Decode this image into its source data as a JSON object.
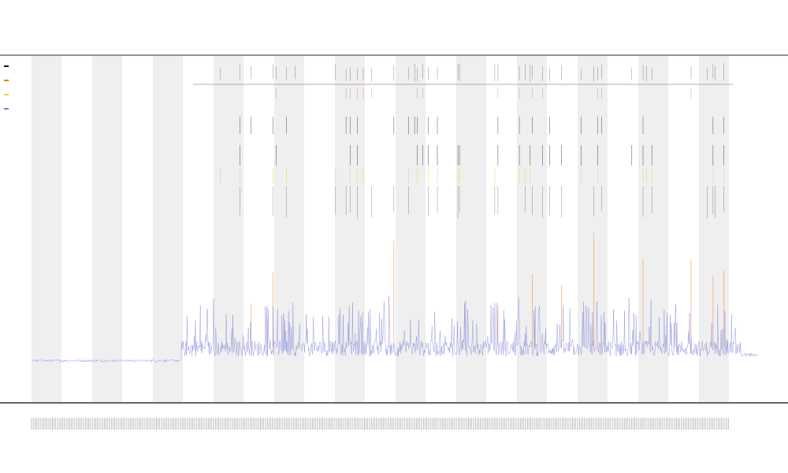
{
  "chart_data": {
    "type": "line",
    "title": "",
    "subtitle_lines": [
      "",
      ""
    ],
    "xlabel": "",
    "ylabel": "",
    "grid": false,
    "legend_placement": "top-left",
    "shaded_bands": 12,
    "series": [
      {
        "name": "",
        "color": "#7b7bd8",
        "style": "continuous-trace"
      },
      {
        "name": "",
        "color": "#e8761f",
        "style": "vertical-spikes"
      },
      {
        "name": "",
        "color": "#e3d64a",
        "style": "event-ticks"
      },
      {
        "name": "",
        "color": "#111111",
        "style": "event-ticks"
      },
      {
        "name": "",
        "color": "#e23b3b",
        "style": "event-ticks"
      }
    ],
    "baseline_segments": [
      {
        "x_start": 0.0,
        "x_end": 0.21,
        "y": 0.03
      },
      {
        "x_start": 0.21,
        "x_end": 1.0,
        "y": 0.12
      }
    ],
    "colors": {
      "band": "#efefef",
      "axis": "#444444",
      "trace": "#7b7bd8",
      "spike": "#e8761f",
      "yellow_ticks": "#e3d64a",
      "red_ticks": "#e23b3b",
      "black_ticks": "#111111"
    }
  }
}
